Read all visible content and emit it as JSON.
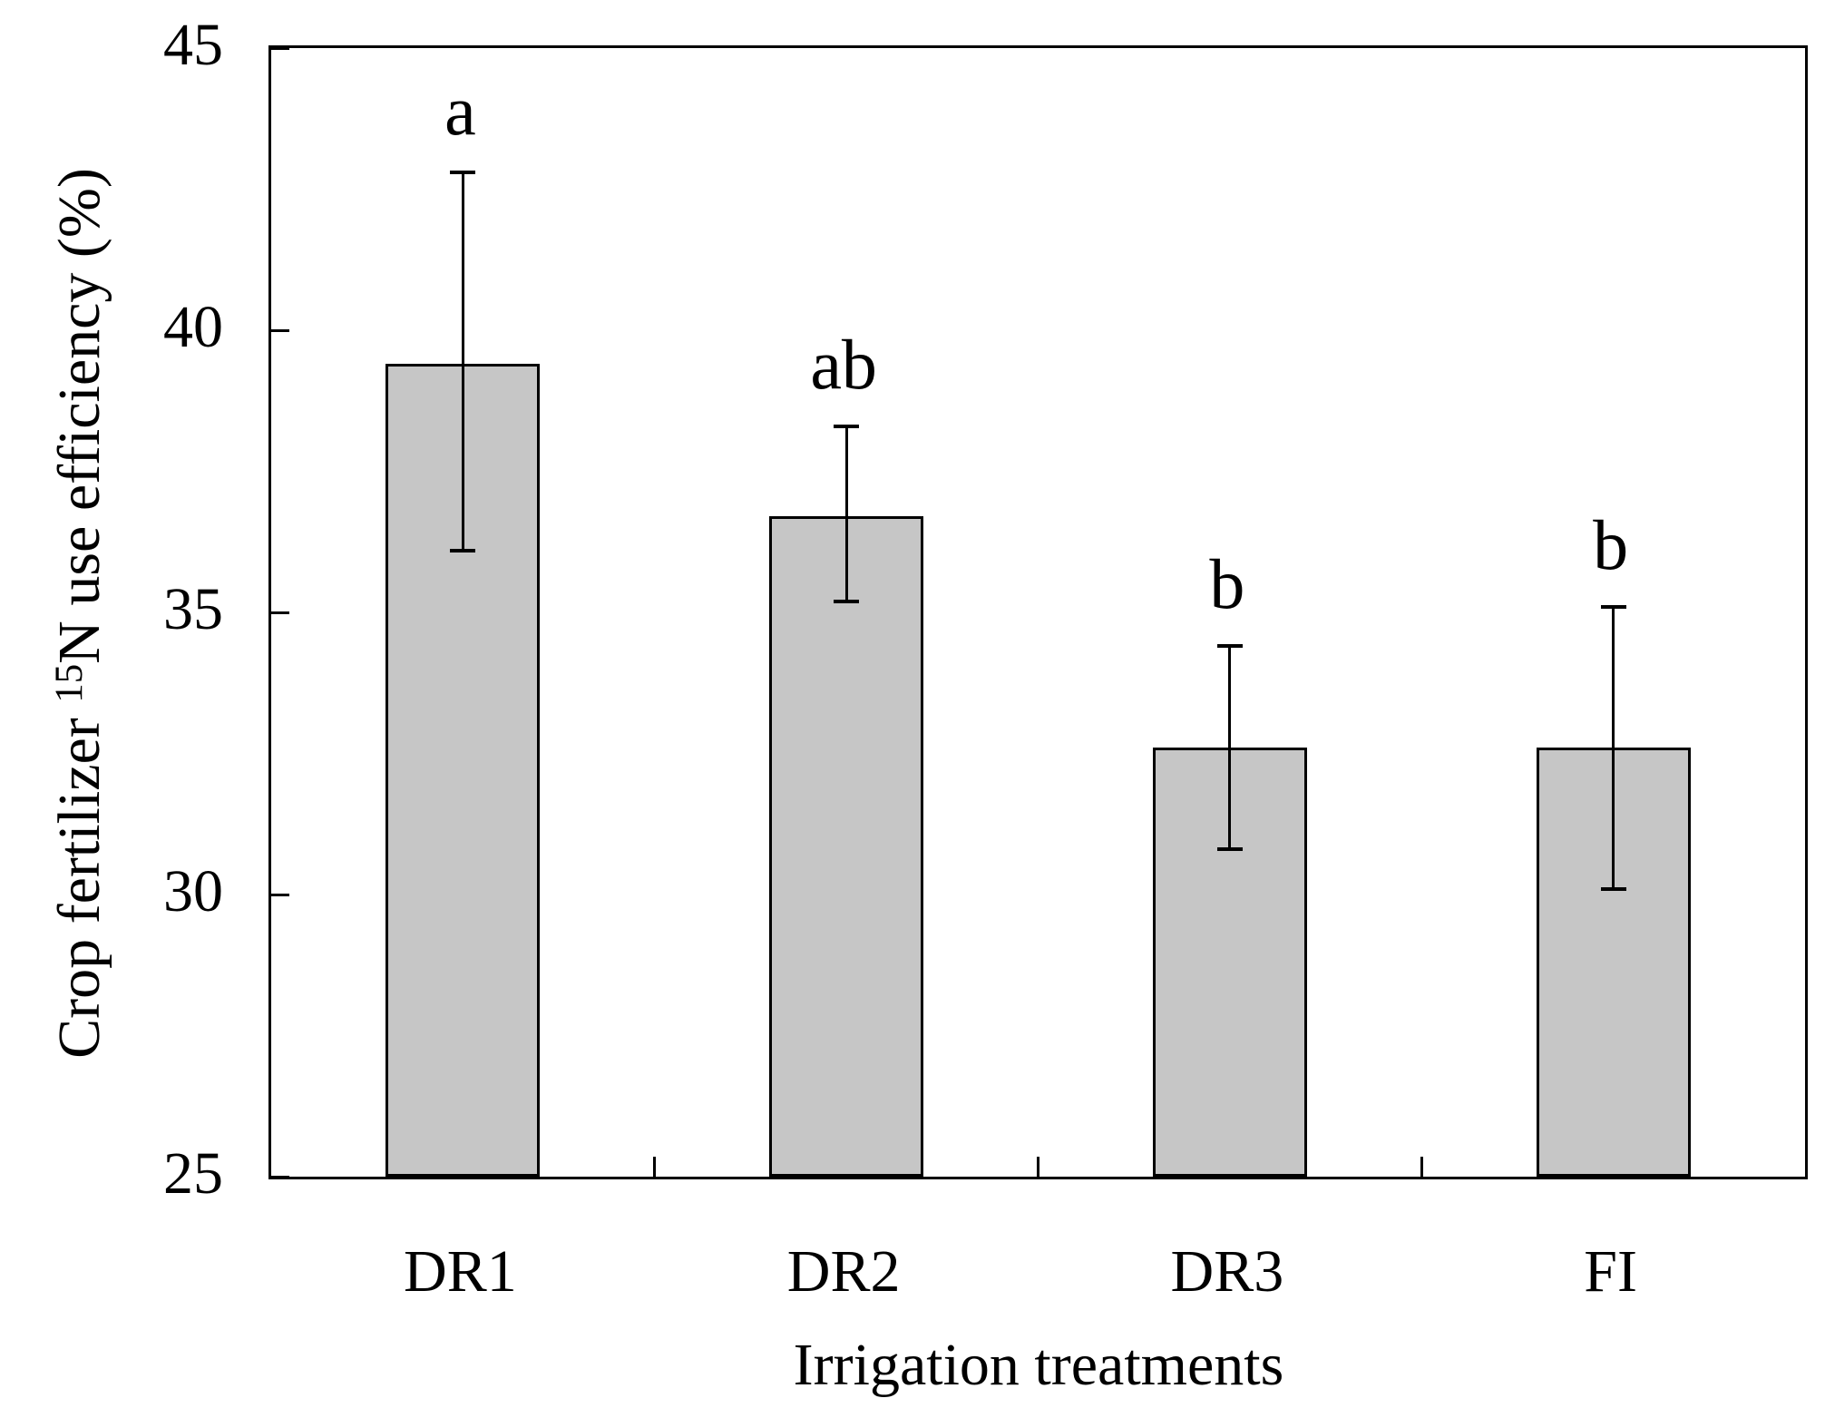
{
  "chart_data": {
    "type": "bar",
    "title": "",
    "xlabel": "Irrigation treatments",
    "ylabel": {
      "prefix": "Crop fertilizer ",
      "superscript": "15",
      "suffix": "N use efficiency (%)"
    },
    "categories": [
      "DR1",
      "DR2",
      "DR3",
      "FI"
    ],
    "values": [
      39.4,
      36.7,
      32.6,
      32.6
    ],
    "error_high": [
      42.8,
      38.3,
      34.4,
      35.1
    ],
    "error_low": [
      36.1,
      35.2,
      30.8,
      30.1
    ],
    "sig_letters": [
      "a",
      "ab",
      "b",
      "b"
    ],
    "ylim": [
      25,
      45
    ],
    "yticks": [
      25,
      30,
      35,
      40,
      45
    ],
    "ytick_labels": [
      "25",
      "30",
      "35",
      "40",
      "45"
    ],
    "grid": false,
    "legend": null,
    "colors": {
      "bar_fill": "#c6c6c6",
      "bar_border": "#000000",
      "axis": "#000000",
      "text": "#000000"
    }
  }
}
